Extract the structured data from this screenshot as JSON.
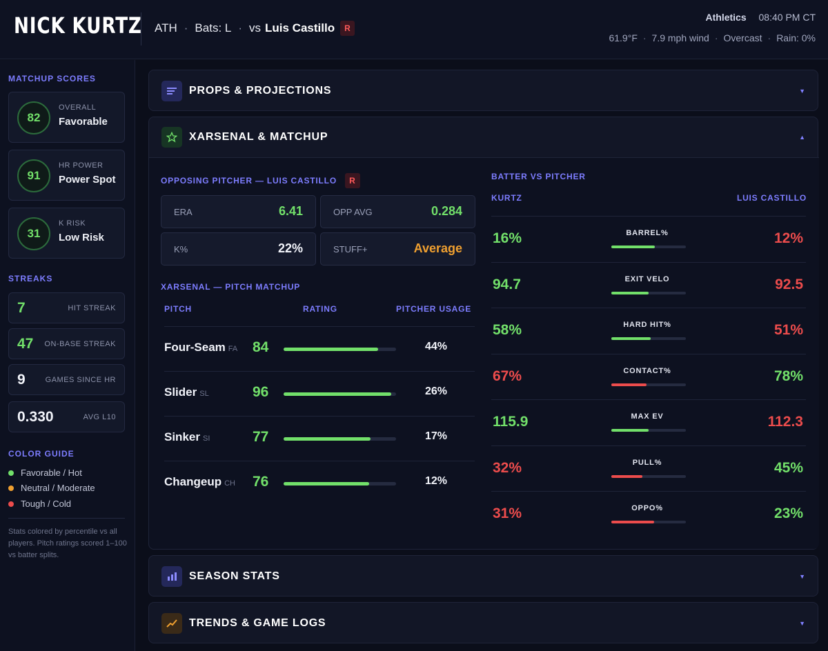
{
  "header": {
    "player_name": "NICK KURTZ",
    "team_abbr": "ATH",
    "sep1": "·",
    "bats": "Bats: L",
    "sep2": "·",
    "vs": "vs",
    "pitcher": "Luis Castillo",
    "pitcher_hand": "R",
    "team_name": "Athletics",
    "game_time": "08:40 PM CT",
    "temp": "61.9°F",
    "wind": "7.9 mph wind",
    "sky": "Overcast",
    "rain": "Rain: 0%",
    "sep": "·"
  },
  "sidebar": {
    "matchup_heading": "MATCHUP SCORES",
    "scores": [
      {
        "value": "82",
        "label": "OVERALL",
        "desc": "Favorable"
      },
      {
        "value": "91",
        "label": "HR POWER",
        "desc": "Power Spot"
      },
      {
        "value": "31",
        "label": "K RISK",
        "desc": "Low Risk"
      }
    ],
    "streaks_heading": "STREAKS",
    "streaks": [
      {
        "value": "7",
        "label": "HIT STREAK"
      },
      {
        "value": "47",
        "label": "ON-BASE STREAK"
      },
      {
        "value": "9",
        "label": "GAMES SINCE HR"
      },
      {
        "value": "0.330",
        "label": "AVG L10"
      }
    ],
    "guide_heading": "COLOR GUIDE",
    "guide": [
      {
        "label": "Favorable / Hot",
        "color": "#72e06a"
      },
      {
        "label": "Neutral / Moderate",
        "color": "#f0a030"
      },
      {
        "label": "Tough / Cold",
        "color": "#ec4c4c"
      }
    ],
    "note": "Stats colored by percentile vs all players. Pitch ratings scored 1–100 vs batter splits."
  },
  "sections": {
    "props": {
      "title": "PROPS & PROJECTIONS",
      "icon": "lines-icon",
      "chevron": "▼"
    },
    "xarsenal": {
      "title": "XARSENAL & MATCHUP",
      "icon": "star-icon",
      "chevron": "▲"
    },
    "season": {
      "title": "SEASON STATS",
      "icon": "bar-chart-icon",
      "chevron": "▼"
    },
    "trends": {
      "title": "TRENDS & GAME LOGS",
      "icon": "trend-line-icon",
      "chevron": "▼"
    }
  },
  "xarsenal": {
    "opposing_heading": "OPPOSING PITCHER — LUIS CASTILLO",
    "pitcher_hand": "R",
    "stats": [
      {
        "label": "ERA",
        "value": "6.41",
        "tone": "green"
      },
      {
        "label": "OPP AVG",
        "value": "0.284",
        "tone": "green"
      },
      {
        "label": "K%",
        "value": "22%",
        "tone": "white"
      },
      {
        "label": "STUFF+",
        "value": "Average",
        "tone": "orange"
      }
    ],
    "pitch_heading": "XARSENAL — PITCH MATCHUP",
    "pitch_cols": {
      "pitch": "PITCH",
      "rating": "RATING",
      "usage": "PITCHER USAGE"
    },
    "pitches": [
      {
        "name": "Four-Seam",
        "code": "FA",
        "rating": 84,
        "usage": "44%"
      },
      {
        "name": "Slider",
        "code": "SL",
        "rating": 96,
        "usage": "26%"
      },
      {
        "name": "Sinker",
        "code": "SI",
        "rating": 77,
        "usage": "17%"
      },
      {
        "name": "Changeup",
        "code": "CH",
        "rating": 76,
        "usage": "12%"
      }
    ],
    "bvp_heading": "BATTER VS PITCHER",
    "bvp_cols": {
      "batter": "KURTZ",
      "pitcher": "LUIS CASTILLO"
    },
    "bvp": [
      {
        "metric": "BARREL%",
        "batter": "16%",
        "pitcher": "12%",
        "batter_tone": "green",
        "pitcher_tone": "red",
        "level": 0.58
      },
      {
        "metric": "EXIT VELO",
        "batter": "94.7",
        "pitcher": "92.5",
        "batter_tone": "green",
        "pitcher_tone": "red",
        "level": 0.5
      },
      {
        "metric": "HARD HIT%",
        "batter": "58%",
        "pitcher": "51%",
        "batter_tone": "green",
        "pitcher_tone": "red",
        "level": 0.53
      },
      {
        "metric": "CONTACT%",
        "batter": "67%",
        "pitcher": "78%",
        "batter_tone": "red",
        "pitcher_tone": "green",
        "level": 0.47
      },
      {
        "metric": "MAX EV",
        "batter": "115.9",
        "pitcher": "112.3",
        "batter_tone": "green",
        "pitcher_tone": "red",
        "level": 0.5
      },
      {
        "metric": "PULL%",
        "batter": "32%",
        "pitcher": "45%",
        "batter_tone": "red",
        "pitcher_tone": "green",
        "level": 0.42
      },
      {
        "metric": "OPPO%",
        "batter": "31%",
        "pitcher": "23%",
        "batter_tone": "red",
        "pitcher_tone": "green",
        "level": 0.57
      }
    ]
  }
}
